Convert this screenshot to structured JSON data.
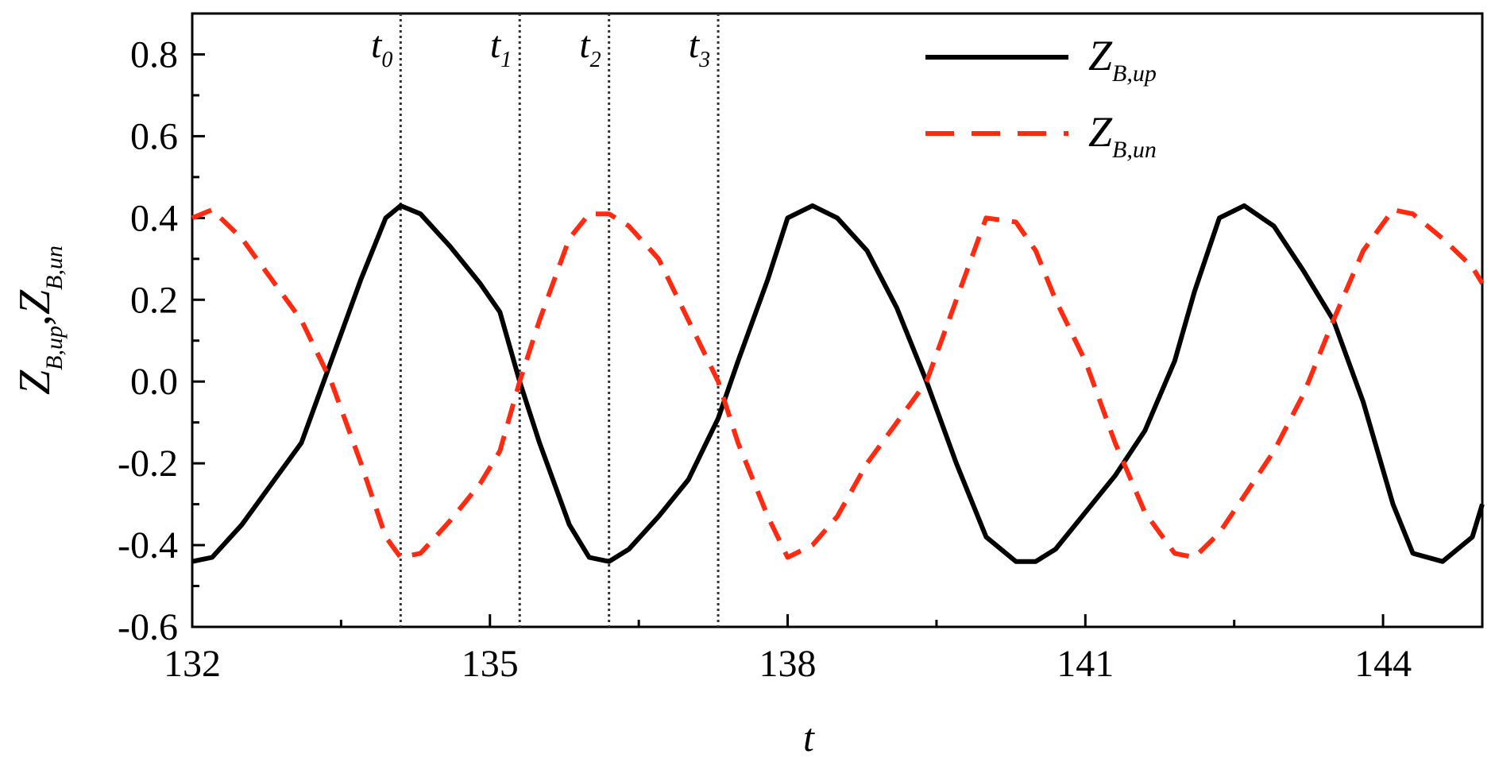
{
  "chart_data": {
    "type": "line",
    "xlabel": "t",
    "ylabel": {
      "main1": "Z",
      "sub1": "B,up",
      "sep": ",",
      "main2": "Z",
      "sub2": "B,un"
    },
    "xlim": [
      132,
      145
    ],
    "ylim": [
      -0.6,
      0.9
    ],
    "x_ticks": [
      132,
      135,
      138,
      141,
      144
    ],
    "x_tick_labels": [
      "132",
      "135",
      "138",
      "141",
      "144"
    ],
    "y_ticks": [
      -0.6,
      -0.4,
      -0.2,
      0.0,
      0.2,
      0.4,
      0.6,
      0.8
    ],
    "y_tick_labels": [
      "-0.6",
      "-0.4",
      "-0.2",
      "0.0",
      "0.2",
      "0.4",
      "0.6",
      "0.8"
    ],
    "grid": false,
    "legend_position": "top-right",
    "vertical_markers": [
      {
        "label_main": "t",
        "label_sub": "0",
        "x": 134.1
      },
      {
        "label_main": "t",
        "label_sub": "1",
        "x": 135.3
      },
      {
        "label_main": "t",
        "label_sub": "2",
        "x": 136.2
      },
      {
        "label_main": "t",
        "label_sub": "3",
        "x": 137.3
      }
    ],
    "series": [
      {
        "name_main": "Z",
        "name_sub": "B,up",
        "color": "#000000",
        "style": "solid",
        "x": [
          132.0,
          132.2,
          132.5,
          132.8,
          133.1,
          133.4,
          133.7,
          133.95,
          134.1,
          134.3,
          134.6,
          134.9,
          135.1,
          135.3,
          135.5,
          135.8,
          136.0,
          136.2,
          136.4,
          136.7,
          137.0,
          137.3,
          137.5,
          137.8,
          138.0,
          138.25,
          138.5,
          138.8,
          139.1,
          139.4,
          139.7,
          140.0,
          140.3,
          140.5,
          140.7,
          141.0,
          141.3,
          141.6,
          141.9,
          142.1,
          142.35,
          142.6,
          142.9,
          143.2,
          143.5,
          143.8,
          144.1,
          144.3,
          144.6,
          144.9,
          145.0
        ],
        "y": [
          -0.44,
          -0.43,
          -0.35,
          -0.25,
          -0.15,
          0.05,
          0.25,
          0.4,
          0.43,
          0.41,
          0.33,
          0.24,
          0.17,
          0.0,
          -0.15,
          -0.35,
          -0.43,
          -0.44,
          -0.41,
          -0.33,
          -0.24,
          -0.09,
          0.05,
          0.25,
          0.4,
          0.43,
          0.4,
          0.32,
          0.18,
          0.0,
          -0.2,
          -0.38,
          -0.44,
          -0.44,
          -0.41,
          -0.32,
          -0.23,
          -0.12,
          0.05,
          0.22,
          0.4,
          0.43,
          0.38,
          0.27,
          0.15,
          -0.05,
          -0.3,
          -0.42,
          -0.44,
          -0.38,
          -0.3
        ]
      },
      {
        "name_main": "Z",
        "name_sub": "B,un",
        "color": "#ff2a10",
        "style": "dashed",
        "x": [
          132.0,
          132.2,
          132.5,
          132.8,
          133.1,
          133.4,
          133.7,
          133.95,
          134.1,
          134.3,
          134.6,
          134.9,
          135.1,
          135.3,
          135.5,
          135.8,
          136.0,
          136.2,
          136.4,
          136.7,
          137.0,
          137.3,
          137.5,
          137.8,
          138.0,
          138.25,
          138.5,
          138.8,
          139.1,
          139.4,
          139.7,
          140.0,
          140.3,
          140.5,
          140.7,
          141.0,
          141.3,
          141.6,
          141.9,
          142.1,
          142.35,
          142.6,
          142.9,
          143.2,
          143.5,
          143.8,
          144.1,
          144.3,
          144.6,
          144.9,
          145.0
        ],
        "y": [
          0.4,
          0.42,
          0.35,
          0.25,
          0.15,
          0.0,
          -0.2,
          -0.38,
          -0.43,
          -0.42,
          -0.34,
          -0.25,
          -0.17,
          0.0,
          0.15,
          0.35,
          0.41,
          0.41,
          0.38,
          0.3,
          0.15,
          0.0,
          -0.15,
          -0.33,
          -0.43,
          -0.4,
          -0.33,
          -0.2,
          -0.1,
          0.0,
          0.2,
          0.4,
          0.39,
          0.32,
          0.2,
          0.05,
          -0.15,
          -0.32,
          -0.42,
          -0.43,
          -0.37,
          -0.28,
          -0.17,
          -0.03,
          0.15,
          0.32,
          0.42,
          0.41,
          0.35,
          0.28,
          0.24
        ]
      }
    ]
  }
}
